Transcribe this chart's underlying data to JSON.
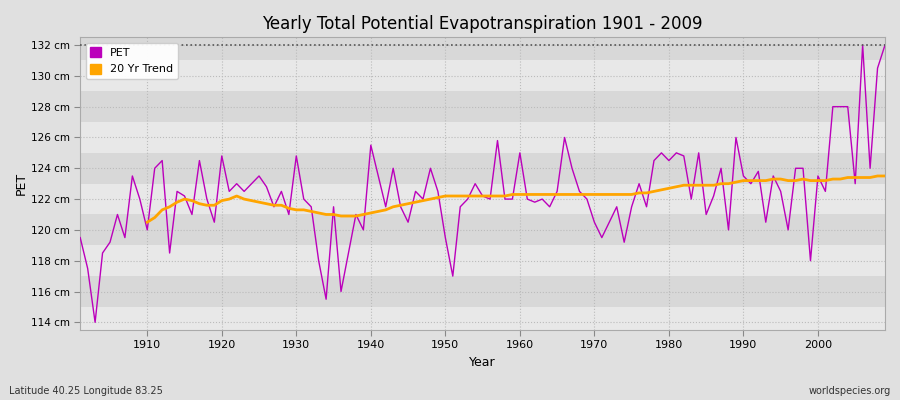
{
  "title": "Yearly Total Potential Evapotranspiration 1901 - 2009",
  "xlabel": "Year",
  "ylabel": "PET",
  "lat_lon_label": "Latitude 40.25 Longitude 83.25",
  "source_label": "worldspecies.org",
  "ylim": [
    113.5,
    132.5
  ],
  "background_color": "#e0e0e0",
  "plot_bg_color": "#e8e8e8",
  "plot_bg_band_color": "#d8d8d8",
  "pet_color": "#bb00bb",
  "trend_color": "#ffa500",
  "dotted_line_y": 132,
  "years": [
    1901,
    1902,
    1903,
    1904,
    1905,
    1906,
    1907,
    1908,
    1909,
    1910,
    1911,
    1912,
    1913,
    1914,
    1915,
    1916,
    1917,
    1918,
    1919,
    1920,
    1921,
    1922,
    1923,
    1924,
    1925,
    1926,
    1927,
    1928,
    1929,
    1930,
    1931,
    1932,
    1933,
    1934,
    1935,
    1936,
    1937,
    1938,
    1939,
    1940,
    1941,
    1942,
    1943,
    1944,
    1945,
    1946,
    1947,
    1948,
    1949,
    1950,
    1951,
    1952,
    1953,
    1954,
    1955,
    1956,
    1957,
    1958,
    1959,
    1960,
    1961,
    1962,
    1963,
    1964,
    1965,
    1966,
    1967,
    1968,
    1969,
    1970,
    1971,
    1972,
    1973,
    1974,
    1975,
    1976,
    1977,
    1978,
    1979,
    1980,
    1981,
    1982,
    1983,
    1984,
    1985,
    1986,
    1987,
    1988,
    1989,
    1990,
    1991,
    1992,
    1993,
    1994,
    1995,
    1996,
    1997,
    1998,
    1999,
    2000,
    2001,
    2002,
    2003,
    2004,
    2005,
    2006,
    2007,
    2008,
    2009
  ],
  "pet_values": [
    119.5,
    117.5,
    114.0,
    118.5,
    119.2,
    121.0,
    119.5,
    123.5,
    122.0,
    120.0,
    124.0,
    124.5,
    118.5,
    122.5,
    122.2,
    121.0,
    124.5,
    122.0,
    120.5,
    124.8,
    122.5,
    123.0,
    122.5,
    123.0,
    123.5,
    122.8,
    121.5,
    122.5,
    121.0,
    124.8,
    122.0,
    121.5,
    118.0,
    115.5,
    121.5,
    116.0,
    118.5,
    121.0,
    120.0,
    125.5,
    123.5,
    121.5,
    124.0,
    121.5,
    120.5,
    122.5,
    122.0,
    124.0,
    122.5,
    119.5,
    117.0,
    121.5,
    122.0,
    123.0,
    122.2,
    122.0,
    125.8,
    122.0,
    122.0,
    125.0,
    122.0,
    121.8,
    122.0,
    121.5,
    122.5,
    126.0,
    124.0,
    122.5,
    122.0,
    120.5,
    119.5,
    120.5,
    121.5,
    119.2,
    121.5,
    123.0,
    121.5,
    124.5,
    125.0,
    124.5,
    125.0,
    124.8,
    122.0,
    125.0,
    121.0,
    122.2,
    124.0,
    120.0,
    126.0,
    123.5,
    123.0,
    123.8,
    120.5,
    123.5,
    122.5,
    120.0,
    124.0,
    124.0,
    118.0,
    123.5,
    122.5,
    128.0,
    128.0,
    128.0,
    123.0,
    132.0,
    124.0,
    130.5,
    132.0
  ],
  "trend_values": [
    null,
    null,
    null,
    null,
    null,
    null,
    null,
    null,
    null,
    120.5,
    120.8,
    121.3,
    121.5,
    121.8,
    122.0,
    121.9,
    121.7,
    121.6,
    121.6,
    121.9,
    122.0,
    122.2,
    122.0,
    121.9,
    121.8,
    121.7,
    121.6,
    121.6,
    121.4,
    121.3,
    121.3,
    121.2,
    121.1,
    121.0,
    121.0,
    120.9,
    120.9,
    120.9,
    121.0,
    121.1,
    121.2,
    121.3,
    121.5,
    121.6,
    121.7,
    121.8,
    121.9,
    122.0,
    122.1,
    122.2,
    122.2,
    122.2,
    122.2,
    122.2,
    122.2,
    122.2,
    122.2,
    122.2,
    122.3,
    122.3,
    122.3,
    122.3,
    122.3,
    122.3,
    122.3,
    122.3,
    122.3,
    122.3,
    122.3,
    122.3,
    122.3,
    122.3,
    122.3,
    122.3,
    122.3,
    122.4,
    122.4,
    122.5,
    122.6,
    122.7,
    122.8,
    122.9,
    122.9,
    122.9,
    122.9,
    122.9,
    123.0,
    123.0,
    123.1,
    123.2,
    123.2,
    123.2,
    123.2,
    123.3,
    123.3,
    123.2,
    123.2,
    123.3,
    123.2,
    123.2,
    123.2,
    123.3,
    123.3,
    123.4,
    123.4,
    123.4,
    123.4,
    123.5,
    123.5
  ]
}
